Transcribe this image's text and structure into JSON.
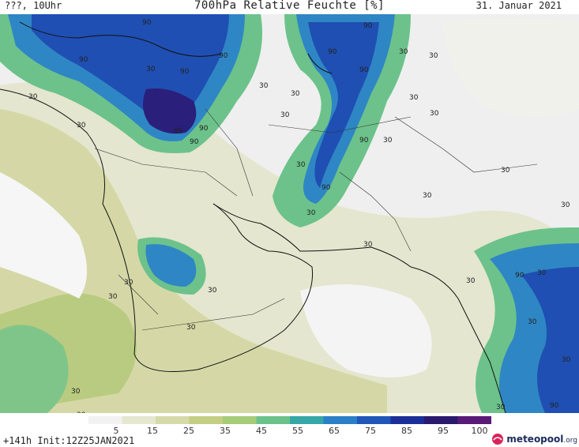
{
  "header": {
    "left": "???, 10Uhr",
    "title": "700hPa Relative Feuchte [%]",
    "date": "31. Januar 2021"
  },
  "footer": {
    "init": "+141h Init:12Z25JAN2021",
    "logo_main": "meteopool",
    "logo_tld": ".org"
  },
  "colorbar": {
    "labels": [
      "5",
      "15",
      "25",
      "35",
      "45",
      "55",
      "65",
      "75",
      "85",
      "95",
      "100"
    ],
    "colors": [
      "#f2f2f2",
      "#e6e7d0",
      "#d6d9a8",
      "#c4ce85",
      "#a6cc7a",
      "#6cc28a",
      "#35a7a6",
      "#2b7fc6",
      "#1f56b8",
      "#1c2f98",
      "#2a1a6e",
      "#5a1a78"
    ]
  },
  "contour_labels": [
    "90",
    "90",
    "30",
    "90",
    "30",
    "30",
    "90",
    "90",
    "30",
    "30",
    "90",
    "30",
    "30",
    "90",
    "30",
    "90",
    "99",
    "90",
    "30",
    "30",
    "30",
    "90",
    "30",
    "30",
    "90",
    "30",
    "30",
    "30",
    "30",
    "30",
    "30",
    "30",
    "90",
    "30",
    "30",
    "30",
    "30",
    "30",
    "30",
    "30",
    "30",
    "90"
  ]
}
